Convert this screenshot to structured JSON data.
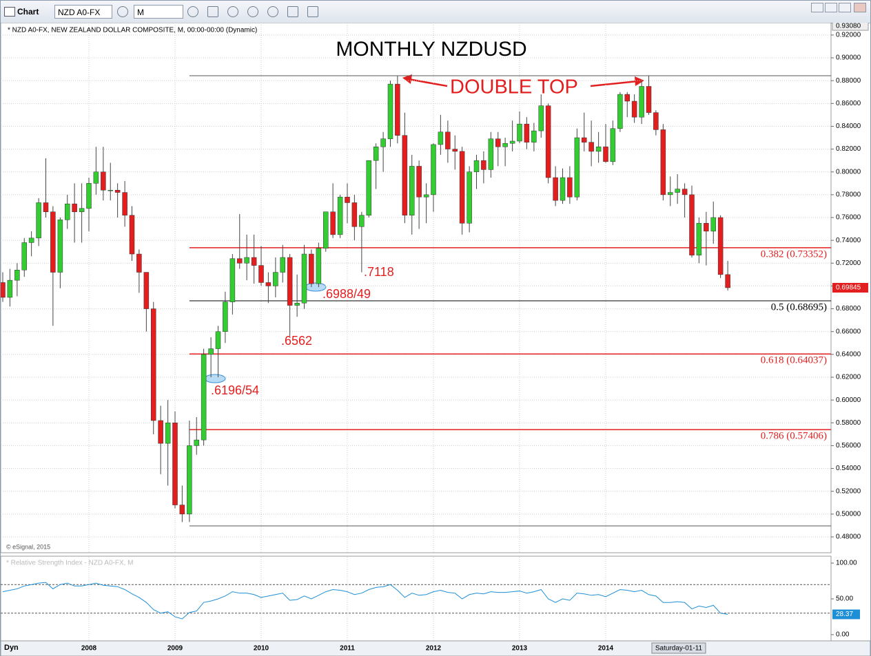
{
  "toolbar": {
    "title": "Chart",
    "symbol": "NZD A0-FX",
    "interval": "M"
  },
  "chart_data": [
    {
      "type": "candlestick",
      "title": "MONTHLY NZDUSD",
      "subtitle": "* NZD A0-FX, NEW ZEALAND DOLLAR COMPOSITE, M, 00:00-00:00 (Dynamic)",
      "source": "© eSignal, 2015",
      "x": [
        2007.0,
        2007.083,
        2007.167,
        2007.25,
        2007.333,
        2007.417,
        2007.5,
        2007.583,
        2007.667,
        2007.75,
        2007.833,
        2007.917,
        2008.0,
        2008.083,
        2008.167,
        2008.25,
        2008.333,
        2008.417,
        2008.5,
        2008.583,
        2008.667,
        2008.75,
        2008.833,
        2008.917,
        2009.0,
        2009.083,
        2009.167,
        2009.25,
        2009.333,
        2009.417,
        2009.5,
        2009.583,
        2009.667,
        2009.75,
        2009.833,
        2009.917,
        2010.0,
        2010.083,
        2010.167,
        2010.25,
        2010.333,
        2010.417,
        2010.5,
        2010.583,
        2010.667,
        2010.75,
        2010.833,
        2010.917,
        2011.0,
        2011.083,
        2011.167,
        2011.25,
        2011.333,
        2011.417,
        2011.5,
        2011.583,
        2011.667,
        2011.75,
        2011.833,
        2011.917,
        2012.0,
        2012.083,
        2012.167,
        2012.25,
        2012.333,
        2012.417,
        2012.5,
        2012.583,
        2012.667,
        2012.75,
        2012.833,
        2012.917,
        2013.0,
        2013.083,
        2013.167,
        2013.25,
        2013.333,
        2013.417,
        2013.5,
        2013.583,
        2013.667,
        2013.75,
        2013.833,
        2013.917,
        2014.0,
        2014.083,
        2014.167,
        2014.25,
        2014.333,
        2014.417,
        2014.5,
        2014.583,
        2014.667,
        2014.75,
        2014.833,
        2014.917,
        2015.0,
        2015.083,
        2015.167,
        2015.25,
        2015.333,
        2015.417
      ],
      "open": [
        0.703,
        0.69,
        0.705,
        0.714,
        0.738,
        0.742,
        0.773,
        0.765,
        0.712,
        0.758,
        0.772,
        0.765,
        0.768,
        0.79,
        0.8,
        0.784,
        0.784,
        0.782,
        0.762,
        0.728,
        0.712,
        0.68,
        0.582,
        0.562,
        0.58,
        0.508,
        0.5,
        0.56,
        0.565,
        0.64,
        0.645,
        0.66,
        0.686,
        0.724,
        0.72,
        0.725,
        0.718,
        0.703,
        0.7,
        0.712,
        0.725,
        0.683,
        0.685,
        0.728,
        0.702,
        0.733,
        0.765,
        0.745,
        0.778,
        0.773,
        0.752,
        0.762,
        0.81,
        0.822,
        0.829,
        0.877,
        0.832,
        0.762,
        0.805,
        0.778,
        0.78,
        0.824,
        0.835,
        0.82,
        0.818,
        0.755,
        0.8,
        0.81,
        0.802,
        0.829,
        0.822,
        0.825,
        0.827,
        0.842,
        0.826,
        0.836,
        0.858,
        0.795,
        0.775,
        0.795,
        0.778,
        0.83,
        0.826,
        0.818,
        0.822,
        0.809,
        0.838,
        0.868,
        0.862,
        0.848,
        0.875,
        0.852,
        0.837,
        0.78,
        0.782,
        0.785,
        0.78,
        0.727,
        0.755,
        0.748,
        0.76,
        0.71
      ],
      "high": [
        0.712,
        0.715,
        0.72,
        0.742,
        0.748,
        0.777,
        0.812,
        0.77,
        0.76,
        0.78,
        0.79,
        0.79,
        0.795,
        0.822,
        0.822,
        0.808,
        0.79,
        0.792,
        0.77,
        0.732,
        0.712,
        0.686,
        0.595,
        0.6,
        0.59,
        0.525,
        0.582,
        0.585,
        0.645,
        0.655,
        0.665,
        0.695,
        0.728,
        0.763,
        0.745,
        0.745,
        0.735,
        0.712,
        0.725,
        0.736,
        0.728,
        0.71,
        0.736,
        0.732,
        0.738,
        0.765,
        0.79,
        0.78,
        0.79,
        0.78,
        0.765,
        0.81,
        0.825,
        0.835,
        0.88,
        0.884,
        0.852,
        0.815,
        0.81,
        0.79,
        0.825,
        0.85,
        0.845,
        0.832,
        0.822,
        0.805,
        0.815,
        0.818,
        0.835,
        0.835,
        0.83,
        0.845,
        0.853,
        0.848,
        0.843,
        0.868,
        0.86,
        0.805,
        0.803,
        0.805,
        0.838,
        0.852,
        0.845,
        0.835,
        0.842,
        0.845,
        0.87,
        0.87,
        0.868,
        0.88,
        0.884,
        0.854,
        0.842,
        0.796,
        0.798,
        0.79,
        0.788,
        0.76,
        0.765,
        0.774,
        0.762,
        0.722
      ],
      "low": [
        0.686,
        0.682,
        0.691,
        0.708,
        0.726,
        0.735,
        0.76,
        0.665,
        0.698,
        0.75,
        0.738,
        0.738,
        0.748,
        0.78,
        0.775,
        0.775,
        0.76,
        0.752,
        0.722,
        0.694,
        0.66,
        0.57,
        0.535,
        0.525,
        0.505,
        0.493,
        0.493,
        0.552,
        0.56,
        0.62,
        0.62,
        0.65,
        0.675,
        0.715,
        0.705,
        0.702,
        0.7,
        0.685,
        0.69,
        0.703,
        0.656,
        0.673,
        0.68,
        0.699,
        0.699,
        0.73,
        0.742,
        0.742,
        0.755,
        0.74,
        0.712,
        0.76,
        0.785,
        0.8,
        0.822,
        0.825,
        0.755,
        0.745,
        0.75,
        0.755,
        0.765,
        0.815,
        0.808,
        0.802,
        0.745,
        0.747,
        0.785,
        0.79,
        0.795,
        0.805,
        0.805,
        0.818,
        0.825,
        0.82,
        0.818,
        0.83,
        0.79,
        0.77,
        0.772,
        0.772,
        0.775,
        0.818,
        0.805,
        0.808,
        0.808,
        0.806,
        0.835,
        0.848,
        0.843,
        0.842,
        0.85,
        0.832,
        0.775,
        0.77,
        0.772,
        0.76,
        0.725,
        0.72,
        0.718,
        0.737,
        0.707,
        0.696
      ],
      "close": [
        0.69,
        0.705,
        0.714,
        0.738,
        0.742,
        0.773,
        0.765,
        0.712,
        0.758,
        0.772,
        0.765,
        0.768,
        0.79,
        0.8,
        0.784,
        0.784,
        0.782,
        0.762,
        0.728,
        0.712,
        0.68,
        0.582,
        0.562,
        0.58,
        0.508,
        0.5,
        0.56,
        0.565,
        0.64,
        0.645,
        0.66,
        0.686,
        0.724,
        0.72,
        0.725,
        0.718,
        0.703,
        0.7,
        0.712,
        0.725,
        0.683,
        0.685,
        0.728,
        0.702,
        0.733,
        0.765,
        0.745,
        0.778,
        0.773,
        0.752,
        0.762,
        0.81,
        0.822,
        0.829,
        0.877,
        0.832,
        0.762,
        0.805,
        0.778,
        0.78,
        0.824,
        0.835,
        0.82,
        0.818,
        0.755,
        0.8,
        0.81,
        0.802,
        0.829,
        0.822,
        0.825,
        0.827,
        0.842,
        0.826,
        0.836,
        0.858,
        0.795,
        0.775,
        0.795,
        0.778,
        0.83,
        0.826,
        0.818,
        0.822,
        0.809,
        0.838,
        0.868,
        0.862,
        0.848,
        0.875,
        0.852,
        0.837,
        0.78,
        0.782,
        0.785,
        0.78,
        0.727,
        0.755,
        0.748,
        0.76,
        0.71,
        0.69845
      ],
      "up_color": "#33cc33",
      "down_color": "#e31e1e",
      "xlim": [
        2006.976,
        2016.616
      ],
      "xticks": [
        2008,
        2009,
        2010,
        2011,
        2012,
        2013,
        2014
      ],
      "ylim": [
        0.4661,
        0.9308
      ],
      "yticks": [
        {
          "value": 0.48,
          "label": "0.48000"
        },
        {
          "value": 0.5,
          "label": "0.50000"
        },
        {
          "value": 0.52,
          "label": "0.52000"
        },
        {
          "value": 0.54,
          "label": "0.54000"
        },
        {
          "value": 0.56,
          "label": "0.56000"
        },
        {
          "value": 0.58,
          "label": "0.58000"
        },
        {
          "value": 0.6,
          "label": "0.60000"
        },
        {
          "value": 0.62,
          "label": "0.62000"
        },
        {
          "value": 0.64,
          "label": "0.64000"
        },
        {
          "value": 0.66,
          "label": "0.66000"
        },
        {
          "value": 0.68,
          "label": "0.68000"
        },
        {
          "value": 0.7,
          "label": "0.70000"
        },
        {
          "value": 0.72,
          "label": "0.72000"
        },
        {
          "value": 0.74,
          "label": "0.74000"
        },
        {
          "value": 0.76,
          "label": "0.76000"
        },
        {
          "value": 0.78,
          "label": "0.78000"
        },
        {
          "value": 0.8,
          "label": "0.80000"
        },
        {
          "value": 0.82,
          "label": "0.82000"
        },
        {
          "value": 0.84,
          "label": "0.84000"
        },
        {
          "value": 0.86,
          "label": "0.86000"
        },
        {
          "value": 0.88,
          "label": "0.88000"
        },
        {
          "value": 0.9,
          "label": "0.90000"
        },
        {
          "value": 0.92,
          "label": "0.92000"
        },
        {
          "value": 0.9308,
          "label": "0.93080"
        }
      ],
      "grid": true,
      "swing_lines": [
        0.8843,
        0.4896
      ],
      "fib_levels": [
        {
          "value": 0.73352,
          "label": "0.382 (0.73352)",
          "color": "#e31e1e"
        },
        {
          "value": 0.68695,
          "label": "0.5 (0.68695)",
          "color": "#000000"
        },
        {
          "value": 0.64037,
          "label": "0.618 (0.64037)",
          "color": "#e31e1e"
        },
        {
          "value": 0.57406,
          "label": "0.786 (0.57406)",
          "color": "#e31e1e"
        }
      ],
      "annotations": [
        "DOUBLE TOP",
        ".7118",
        ".6988/49",
        ".6562",
        ".6196/54"
      ]
    },
    {
      "type": "line",
      "title": "* Relative Strength Index - NZD A0-FX, M",
      "color": "#1e8fd6",
      "values": [
        60,
        62,
        64,
        68,
        70,
        72,
        73,
        64,
        70,
        72,
        68,
        68,
        70,
        72,
        69,
        68,
        67,
        63,
        57,
        52,
        45,
        35,
        30,
        32,
        25,
        22,
        31,
        33,
        45,
        47,
        50,
        54,
        60,
        58,
        58,
        56,
        52,
        54,
        56,
        58,
        48,
        49,
        54,
        50,
        55,
        60,
        63,
        62,
        60,
        56,
        58,
        63,
        66,
        67,
        70,
        62,
        52,
        58,
        55,
        56,
        60,
        62,
        59,
        58,
        50,
        56,
        58,
        57,
        60,
        59,
        59,
        60,
        61,
        58,
        60,
        63,
        50,
        45,
        50,
        48,
        58,
        57,
        55,
        56,
        53,
        58,
        63,
        62,
        60,
        62,
        56,
        54,
        45,
        45,
        46,
        45,
        36,
        40,
        38,
        41,
        30,
        28.37
      ],
      "ylim": [
        -8.7,
        108.7
      ],
      "yticks": [
        {
          "value": 0,
          "label": "0.00"
        },
        {
          "value": 50,
          "label": "50.00"
        },
        {
          "value": 100,
          "label": "100.00"
        }
      ],
      "levels": [
        70,
        30
      ]
    }
  ],
  "x_axis": {
    "mode": "Dyn",
    "cursor_label": "Saturday-01-11"
  }
}
